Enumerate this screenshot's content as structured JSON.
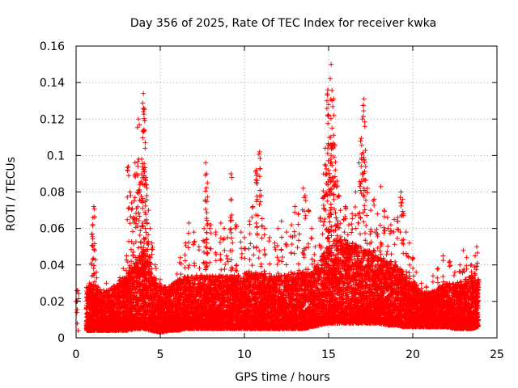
{
  "chart_data": {
    "type": "scatter",
    "title": "Day 356 of 2025, Rate Of TEC Index for receiver kwka",
    "xlabel": "GPS time / hours",
    "ylabel": "ROTI / TECUs",
    "xlim": [
      0,
      25
    ],
    "ylim": [
      0,
      0.16
    ],
    "xticks": [
      "0",
      "5",
      "10",
      "15",
      "20",
      "25"
    ],
    "yticks": [
      "0",
      "0.02",
      "0.04",
      "0.06",
      "0.08",
      "0.1",
      "0.12",
      "0.14",
      "0.16"
    ],
    "grid": true,
    "marker": "+",
    "color": "#ff0000",
    "series": [
      {
        "points": [
          [
            0.03,
            0.02
          ],
          [
            0.05,
            0.014
          ],
          [
            0.07,
            0.008
          ],
          [
            0.1,
            0.026
          ],
          [
            0.12,
            0.004
          ],
          [
            0.7,
            0.022
          ],
          [
            0.8,
            0.03
          ],
          [
            0.9,
            0.041
          ],
          [
            0.95,
            0.057
          ],
          [
            1.0,
            0.066
          ],
          [
            1.05,
            0.072
          ],
          [
            1.1,
            0.048
          ],
          [
            1.2,
            0.036
          ],
          [
            1.3,
            0.028
          ],
          [
            1.5,
            0.025
          ],
          [
            1.8,
            0.03
          ],
          [
            2.0,
            0.022
          ],
          [
            2.3,
            0.027
          ],
          [
            2.6,
            0.033
          ],
          [
            2.8,
            0.038
          ],
          [
            3.0,
            0.045
          ],
          [
            3.1,
            0.094
          ],
          [
            3.2,
            0.08
          ],
          [
            3.3,
            0.074
          ],
          [
            3.4,
            0.066
          ],
          [
            3.5,
            0.096
          ],
          [
            3.6,
            0.09
          ],
          [
            3.7,
            0.12
          ],
          [
            3.8,
            0.085
          ],
          [
            3.9,
            0.098
          ],
          [
            4.0,
            0.134
          ],
          [
            4.02,
            0.126
          ],
          [
            4.05,
            0.114
          ],
          [
            4.1,
            0.104
          ],
          [
            4.15,
            0.088
          ],
          [
            4.2,
            0.078
          ],
          [
            4.3,
            0.07
          ],
          [
            4.4,
            0.06
          ],
          [
            4.5,
            0.052
          ],
          [
            4.7,
            0.04
          ],
          [
            5.0,
            0.032
          ],
          [
            5.3,
            0.028
          ],
          [
            5.6,
            0.025
          ],
          [
            6.0,
            0.035
          ],
          [
            6.2,
            0.044
          ],
          [
            6.5,
            0.052
          ],
          [
            6.7,
            0.063
          ],
          [
            7.0,
            0.058
          ],
          [
            7.3,
            0.05
          ],
          [
            7.6,
            0.06
          ],
          [
            7.7,
            0.096
          ],
          [
            7.75,
            0.09
          ],
          [
            7.8,
            0.085
          ],
          [
            8.0,
            0.062
          ],
          [
            8.3,
            0.058
          ],
          [
            8.6,
            0.063
          ],
          [
            8.8,
            0.06
          ],
          [
            9.0,
            0.055
          ],
          [
            9.2,
            0.09
          ],
          [
            9.25,
            0.088
          ],
          [
            9.5,
            0.062
          ],
          [
            9.8,
            0.058
          ],
          [
            10.0,
            0.055
          ],
          [
            10.3,
            0.064
          ],
          [
            10.5,
            0.072
          ],
          [
            10.7,
            0.092
          ],
          [
            10.75,
            0.09
          ],
          [
            10.9,
            0.102
          ],
          [
            11.0,
            0.078
          ],
          [
            11.2,
            0.06
          ],
          [
            11.5,
            0.055
          ],
          [
            11.8,
            0.052
          ],
          [
            12.0,
            0.06
          ],
          [
            12.2,
            0.064
          ],
          [
            12.5,
            0.058
          ],
          [
            12.8,
            0.062
          ],
          [
            13.0,
            0.072
          ],
          [
            13.2,
            0.068
          ],
          [
            13.5,
            0.082
          ],
          [
            13.6,
            0.078
          ],
          [
            13.8,
            0.07
          ],
          [
            14.0,
            0.06
          ],
          [
            14.2,
            0.05
          ],
          [
            14.5,
            0.066
          ],
          [
            14.7,
            0.09
          ],
          [
            14.8,
            0.104
          ],
          [
            14.9,
            0.13
          ],
          [
            14.95,
            0.136
          ],
          [
            15.0,
            0.122
          ],
          [
            15.05,
            0.11
          ],
          [
            15.1,
            0.098
          ],
          [
            15.15,
            0.15
          ],
          [
            15.2,
            0.115
          ],
          [
            15.3,
            0.131
          ],
          [
            15.35,
            0.106
          ],
          [
            15.4,
            0.092
          ],
          [
            15.5,
            0.086
          ],
          [
            15.6,
            0.078
          ],
          [
            15.7,
            0.07
          ],
          [
            15.9,
            0.065
          ],
          [
            16.0,
            0.072
          ],
          [
            16.2,
            0.062
          ],
          [
            16.4,
            0.068
          ],
          [
            16.6,
            0.08
          ],
          [
            16.8,
            0.096
          ],
          [
            16.9,
            0.108
          ],
          [
            17.0,
            0.12
          ],
          [
            17.1,
            0.131
          ],
          [
            17.15,
            0.116
          ],
          [
            17.2,
            0.094
          ],
          [
            17.3,
            0.082
          ],
          [
            17.5,
            0.07
          ],
          [
            17.7,
            0.076
          ],
          [
            17.9,
            0.068
          ],
          [
            18.1,
            0.083
          ],
          [
            18.3,
            0.07
          ],
          [
            18.5,
            0.066
          ],
          [
            18.7,
            0.062
          ],
          [
            18.9,
            0.065
          ],
          [
            19.1,
            0.066
          ],
          [
            19.3,
            0.08
          ],
          [
            19.4,
            0.076
          ],
          [
            19.6,
            0.058
          ],
          [
            19.8,
            0.052
          ],
          [
            20.0,
            0.044
          ],
          [
            20.2,
            0.036
          ],
          [
            20.5,
            0.03
          ],
          [
            20.8,
            0.028
          ],
          [
            21.2,
            0.034
          ],
          [
            21.5,
            0.038
          ],
          [
            21.8,
            0.045
          ],
          [
            22.2,
            0.042
          ],
          [
            22.5,
            0.036
          ],
          [
            22.8,
            0.04
          ],
          [
            23.0,
            0.048
          ],
          [
            23.2,
            0.044
          ],
          [
            23.5,
            0.04
          ],
          [
            23.7,
            0.045
          ],
          [
            23.8,
            0.05
          ],
          [
            23.9,
            0.032
          ]
        ]
      }
    ],
    "dense_band": [
      [
        0.6,
        0.004,
        0.028
      ],
      [
        1.0,
        0.004,
        0.03
      ],
      [
        1.5,
        0.004,
        0.026
      ],
      [
        2.0,
        0.004,
        0.027
      ],
      [
        2.5,
        0.004,
        0.03
      ],
      [
        3.0,
        0.004,
        0.034
      ],
      [
        3.5,
        0.005,
        0.042
      ],
      [
        4.0,
        0.005,
        0.048
      ],
      [
        4.5,
        0.004,
        0.036
      ],
      [
        5.0,
        0.003,
        0.028
      ],
      [
        5.5,
        0.004,
        0.028
      ],
      [
        6.0,
        0.004,
        0.032
      ],
      [
        6.5,
        0.005,
        0.034
      ],
      [
        7.0,
        0.005,
        0.034
      ],
      [
        7.5,
        0.005,
        0.035
      ],
      [
        8.0,
        0.005,
        0.034
      ],
      [
        8.5,
        0.005,
        0.034
      ],
      [
        9.0,
        0.005,
        0.034
      ],
      [
        9.5,
        0.005,
        0.035
      ],
      [
        10.0,
        0.005,
        0.036
      ],
      [
        10.5,
        0.005,
        0.036
      ],
      [
        11.0,
        0.005,
        0.036
      ],
      [
        11.5,
        0.005,
        0.034
      ],
      [
        12.0,
        0.005,
        0.034
      ],
      [
        12.5,
        0.005,
        0.035
      ],
      [
        13.0,
        0.005,
        0.036
      ],
      [
        13.5,
        0.005,
        0.035
      ],
      [
        14.0,
        0.006,
        0.036
      ],
      [
        14.5,
        0.007,
        0.044
      ],
      [
        15.0,
        0.008,
        0.05
      ],
      [
        15.5,
        0.008,
        0.055
      ],
      [
        16.0,
        0.008,
        0.054
      ],
      [
        16.5,
        0.008,
        0.052
      ],
      [
        17.0,
        0.008,
        0.05
      ],
      [
        17.5,
        0.008,
        0.048
      ],
      [
        18.0,
        0.008,
        0.044
      ],
      [
        18.5,
        0.007,
        0.042
      ],
      [
        19.0,
        0.007,
        0.04
      ],
      [
        19.5,
        0.006,
        0.036
      ],
      [
        20.0,
        0.006,
        0.032
      ],
      [
        20.5,
        0.006,
        0.026
      ],
      [
        21.0,
        0.006,
        0.025
      ],
      [
        21.5,
        0.006,
        0.028
      ],
      [
        22.0,
        0.006,
        0.03
      ],
      [
        22.5,
        0.005,
        0.03
      ],
      [
        23.0,
        0.005,
        0.032
      ],
      [
        23.5,
        0.005,
        0.034
      ],
      [
        23.9,
        0.006,
        0.03
      ]
    ]
  }
}
